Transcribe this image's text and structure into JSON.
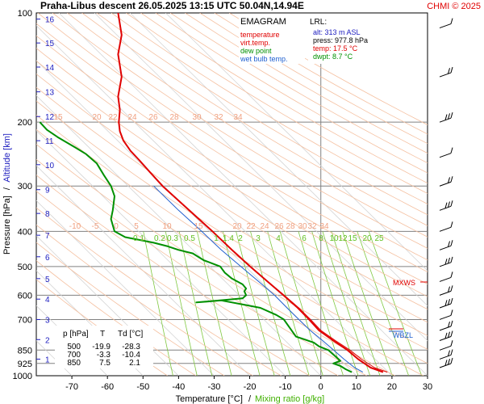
{
  "header": {
    "title": "Praha-Libus   descent   26.05.2025 13:15 UTC  50.04N,14.94E",
    "credit": "CHMI © 2025"
  },
  "legend": {
    "title": "EMAGRAM",
    "items": [
      {
        "label": "temperature",
        "color": "#e00000"
      },
      {
        "label": "virt.temp.",
        "color": "#e00000"
      },
      {
        "label": "dew point",
        "color": "#009000"
      },
      {
        "label": "wet bulb temp.",
        "color": "#2060d0"
      }
    ]
  },
  "lrl": {
    "title": "LRL:",
    "lines": [
      {
        "text": "alt: 313 m ASL",
        "color": "#2020c0"
      },
      {
        "text": "press: 977.8 hPa",
        "color": "#000000"
      },
      {
        "text": "temp: 17.5 °C",
        "color": "#e00000"
      },
      {
        "text": "dwpt: 8.7 °C",
        "color": "#009000"
      }
    ]
  },
  "table": {
    "headers": [
      "p [hPa]",
      "T",
      "Td [°C]"
    ],
    "rows": [
      [
        "500",
        "-19.9",
        "-28.3"
      ],
      [
        "700",
        "-3.3",
        "-10.4"
      ],
      [
        "850",
        "7.5",
        "2.1"
      ]
    ]
  },
  "annotations": {
    "mxws": "MXWS",
    "wbzl": "WBZL"
  },
  "chart_data": {
    "type": "line",
    "xlabel": "Temperature [°C]",
    "xlabel_sep": "/",
    "xlabel2": "Mixing ratio [g/kg]",
    "ylabel": "Pressure [hPa]",
    "ylabel_sep": "/",
    "ylabel2": "Altitude [km]",
    "xlim": [
      -80,
      30
    ],
    "ylim": [
      1000,
      100
    ],
    "y_scale": "log",
    "x_ticks": [
      -70,
      -60,
      -50,
      -40,
      -30,
      -20,
      -10,
      0,
      10,
      20,
      30
    ],
    "y_ticks": [
      100,
      200,
      300,
      400,
      500,
      600,
      700,
      850,
      925,
      1000
    ],
    "altitude_km_labels": [
      {
        "km": "16",
        "p": 104
      },
      {
        "km": "15",
        "p": 121
      },
      {
        "km": "14",
        "p": 141
      },
      {
        "km": "13",
        "p": 165
      },
      {
        "km": "12",
        "p": 193
      },
      {
        "km": "11",
        "p": 225
      },
      {
        "km": "10",
        "p": 262
      },
      {
        "km": "9",
        "p": 307
      },
      {
        "km": "8",
        "p": 357
      },
      {
        "km": "7",
        "p": 410
      },
      {
        "km": "6",
        "p": 470
      },
      {
        "km": "5",
        "p": 540
      },
      {
        "km": "4",
        "p": 615
      },
      {
        "km": "3",
        "p": 700
      },
      {
        "km": "2",
        "p": 795
      },
      {
        "km": "1",
        "p": 900
      }
    ],
    "mixing_ratio_labels": [
      "0.1",
      "0.2",
      "0.3",
      "0.5",
      "1",
      "1.4",
      "2",
      "3",
      "4",
      "6",
      "8",
      "10",
      "12",
      "15",
      "20",
      "25"
    ],
    "theta_labels_400": [
      "-10",
      "-5",
      "0",
      "5",
      "10",
      "15",
      "20",
      "22",
      "24",
      "26",
      "28",
      "30",
      "32",
      "34"
    ],
    "theta_labels_200": [
      "15",
      "20",
      "22",
      "24",
      "26",
      "28",
      "30",
      "32",
      "34"
    ],
    "series": [
      {
        "name": "temperature",
        "color": "#e00000",
        "points": [
          [
            17.5,
            977.8
          ],
          [
            14,
            950
          ],
          [
            10.5,
            900
          ],
          [
            7.5,
            850
          ],
          [
            3.5,
            800
          ],
          [
            -0.5,
            750
          ],
          [
            -3.3,
            700
          ],
          [
            -6.5,
            650
          ],
          [
            -10.5,
            600
          ],
          [
            -15,
            550
          ],
          [
            -19.9,
            500
          ],
          [
            -25,
            450
          ],
          [
            -30.5,
            400
          ],
          [
            -37,
            350
          ],
          [
            -44.5,
            300
          ],
          [
            -48,
            275
          ],
          [
            -51,
            255
          ],
          [
            -53.5,
            240
          ],
          [
            -55.5,
            225
          ],
          [
            -56.5,
            212
          ],
          [
            -56.8,
            200
          ],
          [
            -56.5,
            185
          ],
          [
            -57,
            170
          ],
          [
            -56,
            150
          ],
          [
            -57,
            130
          ],
          [
            -56,
            115
          ],
          [
            -57,
            100
          ]
        ]
      },
      {
        "name": "dew point",
        "color": "#009000",
        "points": [
          [
            8.7,
            977.8
          ],
          [
            7,
            960
          ],
          [
            5.5,
            940
          ],
          [
            3.5,
            925
          ],
          [
            5.5,
            910
          ],
          [
            2.1,
            850
          ],
          [
            -0.5,
            830
          ],
          [
            -2,
            810
          ],
          [
            -7,
            780
          ],
          [
            -10.4,
            700
          ],
          [
            -12.5,
            680
          ],
          [
            -17,
            650
          ],
          [
            -20.5,
            640
          ],
          [
            -28,
            620
          ],
          [
            -35,
            628
          ],
          [
            -22,
            612
          ],
          [
            -21,
            600
          ],
          [
            -21.5,
            585
          ],
          [
            -21,
            575
          ],
          [
            -22,
            560
          ],
          [
            -25,
            540
          ],
          [
            -27,
            520
          ],
          [
            -28.3,
            500
          ],
          [
            -33,
            480
          ],
          [
            -36,
            460
          ],
          [
            -40,
            450
          ],
          [
            -43,
            440
          ],
          [
            -47,
            430
          ],
          [
            -55,
            415
          ],
          [
            -58,
            400
          ],
          [
            -59,
            370
          ],
          [
            -58.5,
            350
          ],
          [
            -58,
            320
          ],
          [
            -59,
            300
          ],
          [
            -61,
            280
          ],
          [
            -63,
            260
          ],
          [
            -66,
            245
          ],
          [
            -69,
            235
          ],
          [
            -74,
            220
          ],
          [
            -77,
            210
          ],
          [
            -79,
            200
          ]
        ]
      },
      {
        "name": "wet bulb temp.",
        "color": "#2060d0",
        "points": [
          [
            11.8,
            977.8
          ],
          [
            9.5,
            950
          ],
          [
            6.5,
            900
          ],
          [
            3.6,
            850
          ],
          [
            0.5,
            800
          ],
          [
            -3,
            750
          ],
          [
            -6.2,
            700
          ],
          [
            -9.5,
            650
          ],
          [
            -13,
            600
          ],
          [
            -17.5,
            550
          ],
          [
            -22.5,
            500
          ],
          [
            -28,
            450
          ],
          [
            -33.5,
            400
          ],
          [
            -40,
            350
          ],
          [
            -47,
            300
          ]
        ]
      },
      {
        "name": "virt.temp.",
        "color": "#e00000",
        "points": [
          [
            18.7,
            977.8
          ],
          [
            15.1,
            950
          ],
          [
            11.4,
            900
          ],
          [
            8.2,
            850
          ],
          [
            4.1,
            800
          ],
          [
            0,
            750
          ],
          [
            -2.9,
            700
          ],
          [
            -6.2,
            650
          ],
          [
            -10.3,
            600
          ],
          [
            -14.9,
            550
          ],
          [
            -19.8,
            500
          ]
        ]
      }
    ]
  }
}
